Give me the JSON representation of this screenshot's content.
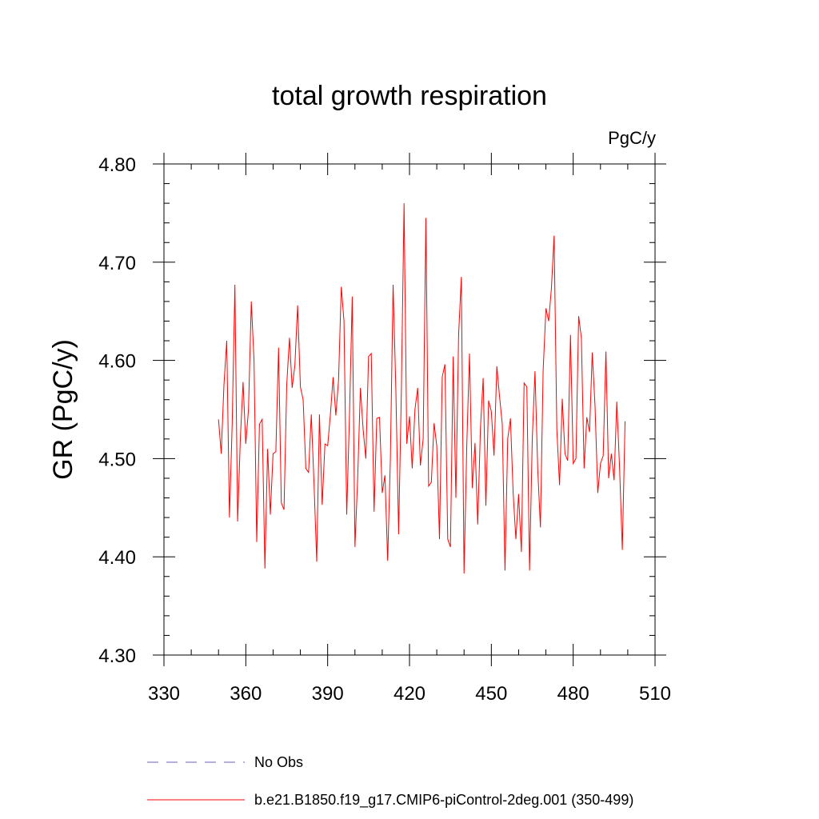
{
  "chart_data": {
    "type": "line",
    "title": "total growth respiration",
    "units": "PgC/y",
    "xlabel": "",
    "ylabel": "GR  (PgC/y)",
    "xlim": [
      330,
      510
    ],
    "ylim": [
      4.3,
      4.8
    ],
    "xticks": [
      "330",
      "360",
      "390",
      "420",
      "450",
      "480",
      "510"
    ],
    "yticks": [
      "4.30",
      "4.40",
      "4.50",
      "4.60",
      "4.70",
      "4.80"
    ],
    "grid": false,
    "legend_position": "bottom",
    "series": [
      {
        "name": "No Obs",
        "color": "#6b5fb5",
        "dash": true,
        "x": [],
        "values": []
      },
      {
        "name": "b.e21.B1850.f19_g17.CMIP6-piControl-2deg.001 (350-499)",
        "color": "#ff0000",
        "dash": false,
        "x": [
          350,
          351,
          352,
          353,
          354,
          355,
          356,
          357,
          358,
          359,
          360,
          361,
          362,
          363,
          364,
          365,
          366,
          367,
          368,
          369,
          370,
          371,
          372,
          373,
          374,
          375,
          376,
          377,
          378,
          379,
          380,
          381,
          382,
          383,
          384,
          385,
          386,
          387,
          388,
          389,
          390,
          391,
          392,
          393,
          394,
          395,
          396,
          397,
          398,
          399,
          400,
          401,
          402,
          403,
          404,
          405,
          406,
          407,
          408,
          409,
          410,
          411,
          412,
          413,
          414,
          415,
          416,
          417,
          418,
          419,
          420,
          421,
          422,
          423,
          424,
          425,
          426,
          427,
          428,
          429,
          430,
          431,
          432,
          433,
          434,
          435,
          436,
          437,
          438,
          439,
          440,
          441,
          442,
          443,
          444,
          445,
          446,
          447,
          448,
          449,
          450,
          451,
          452,
          453,
          454,
          455,
          456,
          457,
          458,
          459,
          460,
          461,
          462,
          463,
          464,
          465,
          466,
          467,
          468,
          469,
          470,
          471,
          472,
          473,
          474,
          475,
          476,
          477,
          478,
          479,
          480,
          481,
          482,
          483,
          484,
          485,
          486,
          487,
          488,
          489,
          490,
          491,
          492,
          493,
          494,
          495,
          496,
          497,
          498,
          499
        ],
        "values": [
          4.54,
          4.505,
          4.575,
          4.62,
          4.44,
          4.535,
          4.677,
          4.436,
          4.52,
          4.578,
          4.515,
          4.55,
          4.66,
          4.6,
          4.415,
          4.535,
          4.54,
          4.388,
          4.51,
          4.443,
          4.505,
          4.507,
          4.613,
          4.455,
          4.448,
          4.575,
          4.623,
          4.572,
          4.595,
          4.656,
          4.573,
          4.56,
          4.49,
          4.486,
          4.545,
          4.475,
          4.395,
          4.545,
          4.453,
          4.515,
          4.513,
          4.545,
          4.583,
          4.544,
          4.58,
          4.675,
          4.64,
          4.443,
          4.545,
          4.665,
          4.41,
          4.48,
          4.572,
          4.53,
          4.5,
          4.604,
          4.607,
          4.446,
          4.541,
          4.542,
          4.465,
          4.483,
          4.396,
          4.5,
          4.677,
          4.572,
          4.423,
          4.568,
          4.76,
          4.515,
          4.543,
          4.49,
          4.55,
          4.572,
          4.493,
          4.52,
          4.745,
          4.472,
          4.476,
          4.536,
          4.513,
          4.418,
          4.583,
          4.596,
          4.418,
          4.41,
          4.604,
          4.46,
          4.626,
          4.685,
          4.383,
          4.513,
          4.607,
          4.47,
          4.516,
          4.433,
          4.531,
          4.582,
          4.452,
          4.559,
          4.548,
          4.503,
          4.594,
          4.563,
          4.535,
          4.386,
          4.52,
          4.541,
          4.465,
          4.418,
          4.464,
          4.405,
          4.577,
          4.573,
          4.386,
          4.52,
          4.589,
          4.49,
          4.43,
          4.59,
          4.653,
          4.64,
          4.673,
          4.727,
          4.53,
          4.473,
          4.561,
          4.505,
          4.498,
          4.626,
          4.495,
          4.5,
          4.645,
          4.623,
          4.49,
          4.542,
          4.527,
          4.608,
          4.553,
          4.465,
          4.495,
          4.503,
          4.609,
          4.48,
          4.505,
          4.478,
          4.558,
          4.49,
          4.407,
          4.538
        ]
      }
    ]
  }
}
